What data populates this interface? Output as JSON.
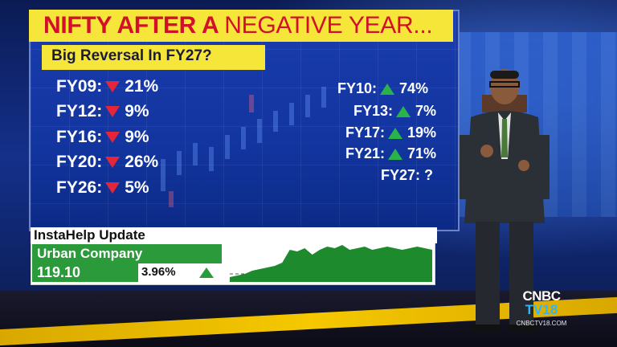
{
  "headline": {
    "part1": "NIFTY AFTER A ",
    "part2": "NEGATIVE YEAR..."
  },
  "subtitle": "Big Reversal In FY27?",
  "left_rows": [
    {
      "label": "FY09:",
      "direction": "down",
      "value": "21%"
    },
    {
      "label": "FY12:",
      "direction": "down",
      "value": "9%"
    },
    {
      "label": "FY16:",
      "direction": "down",
      "value": "9%"
    },
    {
      "label": "FY20:",
      "direction": "down",
      "value": "26%"
    },
    {
      "label": "FY26:",
      "direction": "down",
      "value": "5%"
    }
  ],
  "right_rows": [
    {
      "label": "FY10:",
      "direction": "up",
      "value": "74%"
    },
    {
      "label": "FY13:",
      "direction": "up",
      "value": "7%"
    },
    {
      "label": "FY17:",
      "direction": "up",
      "value": "19%"
    },
    {
      "label": "FY21:",
      "direction": "up",
      "value": "71%"
    },
    {
      "label": "FY27: ?",
      "direction": "none",
      "value": ""
    }
  ],
  "ticker": {
    "header": "InstaHelp Update",
    "company": "Urban Company",
    "price": "119.10",
    "change": "3.96%",
    "direction": "up",
    "sparkline": [
      48,
      46,
      44,
      40,
      38,
      36,
      34,
      30,
      14,
      16,
      12,
      20,
      14,
      10,
      12,
      8,
      14,
      12,
      10,
      14,
      12,
      10,
      12,
      14,
      12,
      10,
      12,
      14
    ]
  },
  "logo": {
    "line1": "CNBC",
    "line2": "TV18",
    "url": "CNBCTV18.COM"
  },
  "colors": {
    "banner": "#f7e63a",
    "headline": "#d2102a",
    "down": "#e5253a",
    "up": "#29b34a",
    "ticker_green": "#2a9a3a"
  }
}
